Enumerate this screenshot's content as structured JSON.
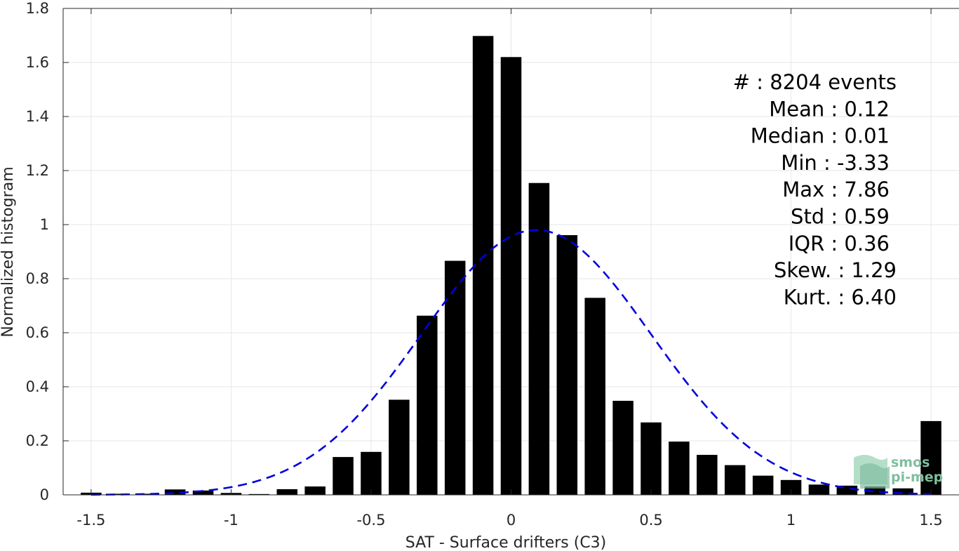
{
  "chart_data": {
    "type": "bar",
    "xlabel": "SAT - Surface drifters (C3)",
    "ylabel": "Normalized histogram",
    "xlim": [
      -1.6,
      1.6
    ],
    "ylim": [
      0,
      1.8
    ],
    "xticks": [
      -1.5,
      -1,
      -0.5,
      0,
      0.5,
      1,
      1.5
    ],
    "xtick_labels": [
      "-1.5",
      "-1",
      "-0.5",
      "0",
      "0.5",
      "1",
      "1.5"
    ],
    "yticks": [
      0,
      0.2,
      0.4,
      0.6,
      0.8,
      1,
      1.2,
      1.4,
      1.6,
      1.8
    ],
    "ytick_labels": [
      "0",
      "0.2",
      "0.4",
      "0.6",
      "0.8",
      "1",
      "1.2",
      "1.4",
      "1.6",
      "1.8"
    ],
    "grid": true,
    "bar_color": "#000000",
    "bins": [
      -1.5,
      -1.4,
      -1.3,
      -1.2,
      -1.1,
      -1.0,
      -0.9,
      -0.8,
      -0.7,
      -0.6,
      -0.5,
      -0.4,
      -0.3,
      -0.2,
      -0.1,
      0.0,
      0.1,
      0.2,
      0.3,
      0.4,
      0.5,
      0.6,
      0.7,
      0.8,
      0.9,
      1.0,
      1.1,
      1.2,
      1.3,
      1.4,
      1.5
    ],
    "values": [
      0.008,
      0.004,
      0.004,
      0.02,
      0.016,
      0.007,
      0.003,
      0.021,
      0.031,
      0.14,
      0.159,
      0.352,
      0.663,
      0.866,
      1.698,
      1.62,
      1.154,
      0.961,
      0.729,
      0.348,
      0.268,
      0.197,
      0.148,
      0.11,
      0.071,
      0.055,
      0.038,
      0.034,
      0.031,
      0.024,
      0.273
    ],
    "fit_curve": {
      "style": "dashed",
      "color": "#0000dd",
      "mean": 0.09,
      "std": 0.41,
      "peak": 0.98
    },
    "stats": [
      "#  : 8204 events",
      "Mean : 0.12",
      "Median : 0.01",
      "Min : -3.33",
      "Max : 7.86",
      "Std : 0.59",
      "IQR : 0.36",
      "Skew. : 1.29",
      "Kurt. : 6.40"
    ]
  },
  "logo": {
    "line1": "smos",
    "line2": "pi-mep"
  }
}
